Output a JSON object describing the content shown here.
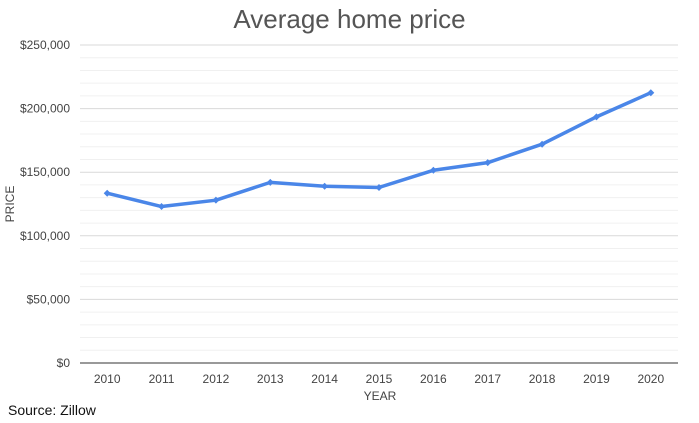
{
  "chart_data": {
    "type": "line",
    "title": "Average home price",
    "xlabel": "YEAR",
    "ylabel": "PRICE",
    "x": [
      "2010",
      "2011",
      "2012",
      "2013",
      "2014",
      "2015",
      "2016",
      "2017",
      "2018",
      "2019",
      "2020"
    ],
    "series": [
      {
        "values": [
          133500,
          123000,
          128000,
          142000,
          139000,
          138000,
          151500,
          157500,
          172000,
          193500,
          212500
        ],
        "color": "#4a86e8"
      }
    ],
    "ylim": [
      0,
      250000
    ],
    "yticks": [
      0,
      50000,
      100000,
      150000,
      200000,
      250000
    ],
    "ytick_labels": [
      "$0",
      "$50,000",
      "$100,000",
      "$150,000",
      "$200,000",
      "$250,000"
    ],
    "grid": true,
    "minor_grid": true,
    "legend": "none"
  },
  "source": "Source: Zillow"
}
